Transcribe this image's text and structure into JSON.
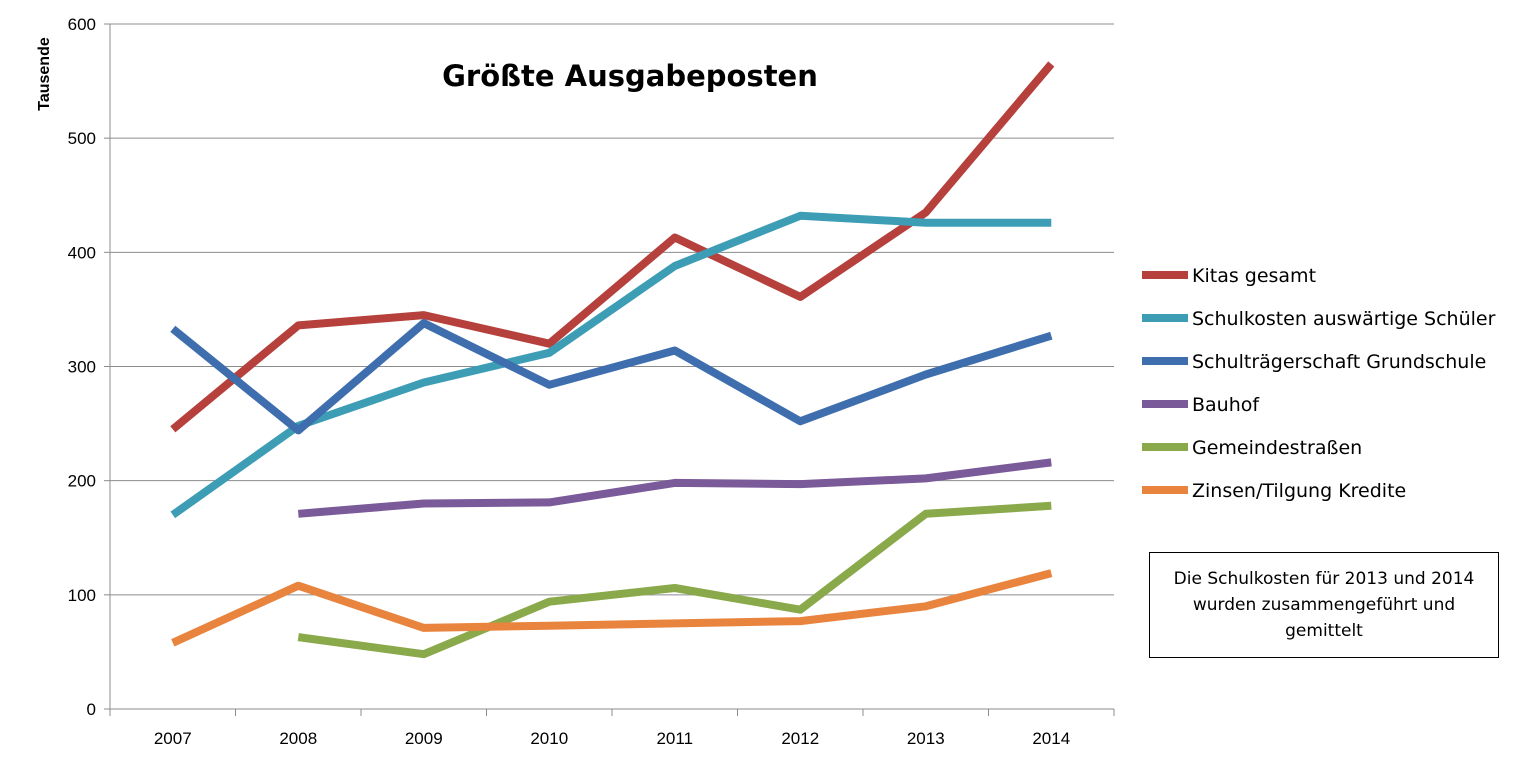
{
  "chart_data": {
    "type": "line",
    "title": "Größte Ausgabeposten",
    "xlabel": "",
    "ylabel": "Tausende",
    "ylim": [
      0,
      600
    ],
    "yticks": [
      "0",
      "100",
      "200",
      "300",
      "400",
      "500",
      "600"
    ],
    "categories": [
      "2007",
      "2008",
      "2009",
      "2010",
      "2011",
      "2012",
      "2013",
      "2014"
    ],
    "grid": "horizontal",
    "legend_position": "right",
    "series": [
      {
        "name": "Kitas gesamt",
        "color": "#b5403c",
        "values": [
          245,
          336,
          345,
          320,
          413,
          361,
          435,
          565
        ]
      },
      {
        "name": "Schulkosten auswärtige Schüler",
        "color": "#3d9db5",
        "values": [
          170,
          248,
          286,
          312,
          388,
          432,
          426,
          426
        ]
      },
      {
        "name": "Schulträgerschaft Grundschule",
        "color": "#3e6ead",
        "values": [
          333,
          244,
          338,
          284,
          314,
          252,
          293,
          327
        ]
      },
      {
        "name": "Bauhof",
        "color": "#7a5a99",
        "values": [
          null,
          171,
          180,
          181,
          198,
          197,
          202,
          216
        ]
      },
      {
        "name": "Gemeindestraßen",
        "color": "#89a94a",
        "values": [
          null,
          63,
          48,
          94,
          106,
          87,
          171,
          178
        ]
      },
      {
        "name": "Zinsen/Tilgung Kredite",
        "color": "#e8843e",
        "values": [
          58,
          108,
          71,
          73,
          75,
          77,
          90,
          119
        ]
      }
    ],
    "annotation": "Die Schulkosten für 2013 und 2014 wurden zusammengeführt und gemittelt"
  }
}
